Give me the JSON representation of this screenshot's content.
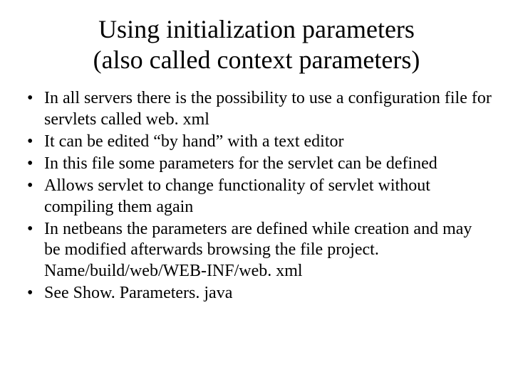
{
  "slide": {
    "title_line1": "Using initialization parameters",
    "title_line2": "(also called context parameters)",
    "bullets": [
      "In all servers there is the possibility to use a configuration file for servlets called web. xml",
      "It can be edited “by hand”  with a text editor",
      "In this file some parameters for the servlet can be defined",
      "Allows servlet to change functionality of servlet  without compiling them again",
      "In netbeans the parameters are defined while creation and may be modified afterwards browsing the file project. Name/build/web/WEB-INF/web. xml",
      "See Show. Parameters. java"
    ]
  },
  "style": {
    "background_color": "#ffffff",
    "text_color": "#000000",
    "title_fontsize": 36,
    "body_fontsize": 24,
    "font_family": "Times New Roman"
  }
}
